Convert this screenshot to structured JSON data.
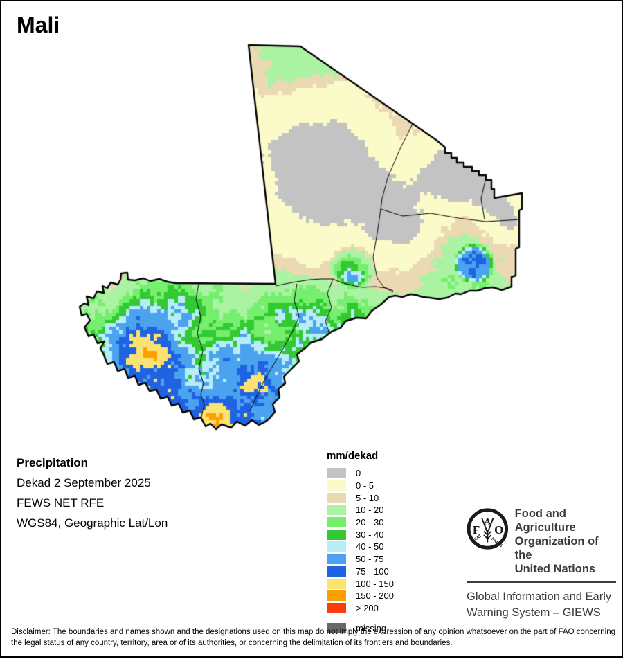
{
  "page": {
    "title": "Mali"
  },
  "info": {
    "product": "Precipitation",
    "dekad": "Dekad 2 September 2025",
    "source": "FEWS NET RFE",
    "projection": "WGS84, Geographic Lat/Lon"
  },
  "legend": {
    "title": "mm/dekad",
    "items": [
      {
        "label": "0",
        "color": "#C3C3C3"
      },
      {
        "label": "0 - 5",
        "color": "#FBFBC9"
      },
      {
        "label": "5 - 10",
        "color": "#EBD9B3"
      },
      {
        "label": "10 - 20",
        "color": "#AAF3A2"
      },
      {
        "label": "20 - 30",
        "color": "#75EF6D"
      },
      {
        "label": "30 - 40",
        "color": "#32C932"
      },
      {
        "label": "40 - 50",
        "color": "#B7EDF8"
      },
      {
        "label": "50 - 75",
        "color": "#4BA2EF"
      },
      {
        "label": "75 - 100",
        "color": "#1F63E3"
      },
      {
        "label": "100 - 150",
        "color": "#FCE371"
      },
      {
        "label": "150 - 200",
        "color": "#FC9F00"
      },
      {
        "label": "> 200",
        "color": "#FB3B0C"
      }
    ],
    "missing": {
      "label": "missing",
      "color": "#696969"
    }
  },
  "fao": {
    "org_line1": "Food and Agriculture",
    "org_line2": "Organization of the",
    "org_line3": "United Nations",
    "giews_line1": "Global Information and Early",
    "giews_line2": "Warning System – GIEWS",
    "logo": {
      "f": "F",
      "a": "A",
      "o": "O",
      "motto_left": "FIAT",
      "motto_right": "PANIS"
    }
  },
  "footer": {
    "disclaimer": "Disclaimer: The boundaries and names shown and the designations used on this map do not imply the expression of any opinion whatsoever on the part of FAO concerning the legal status of any country, territory, area or of its authorities, or concerning the delimitation of its frontiers and boundaries."
  }
}
